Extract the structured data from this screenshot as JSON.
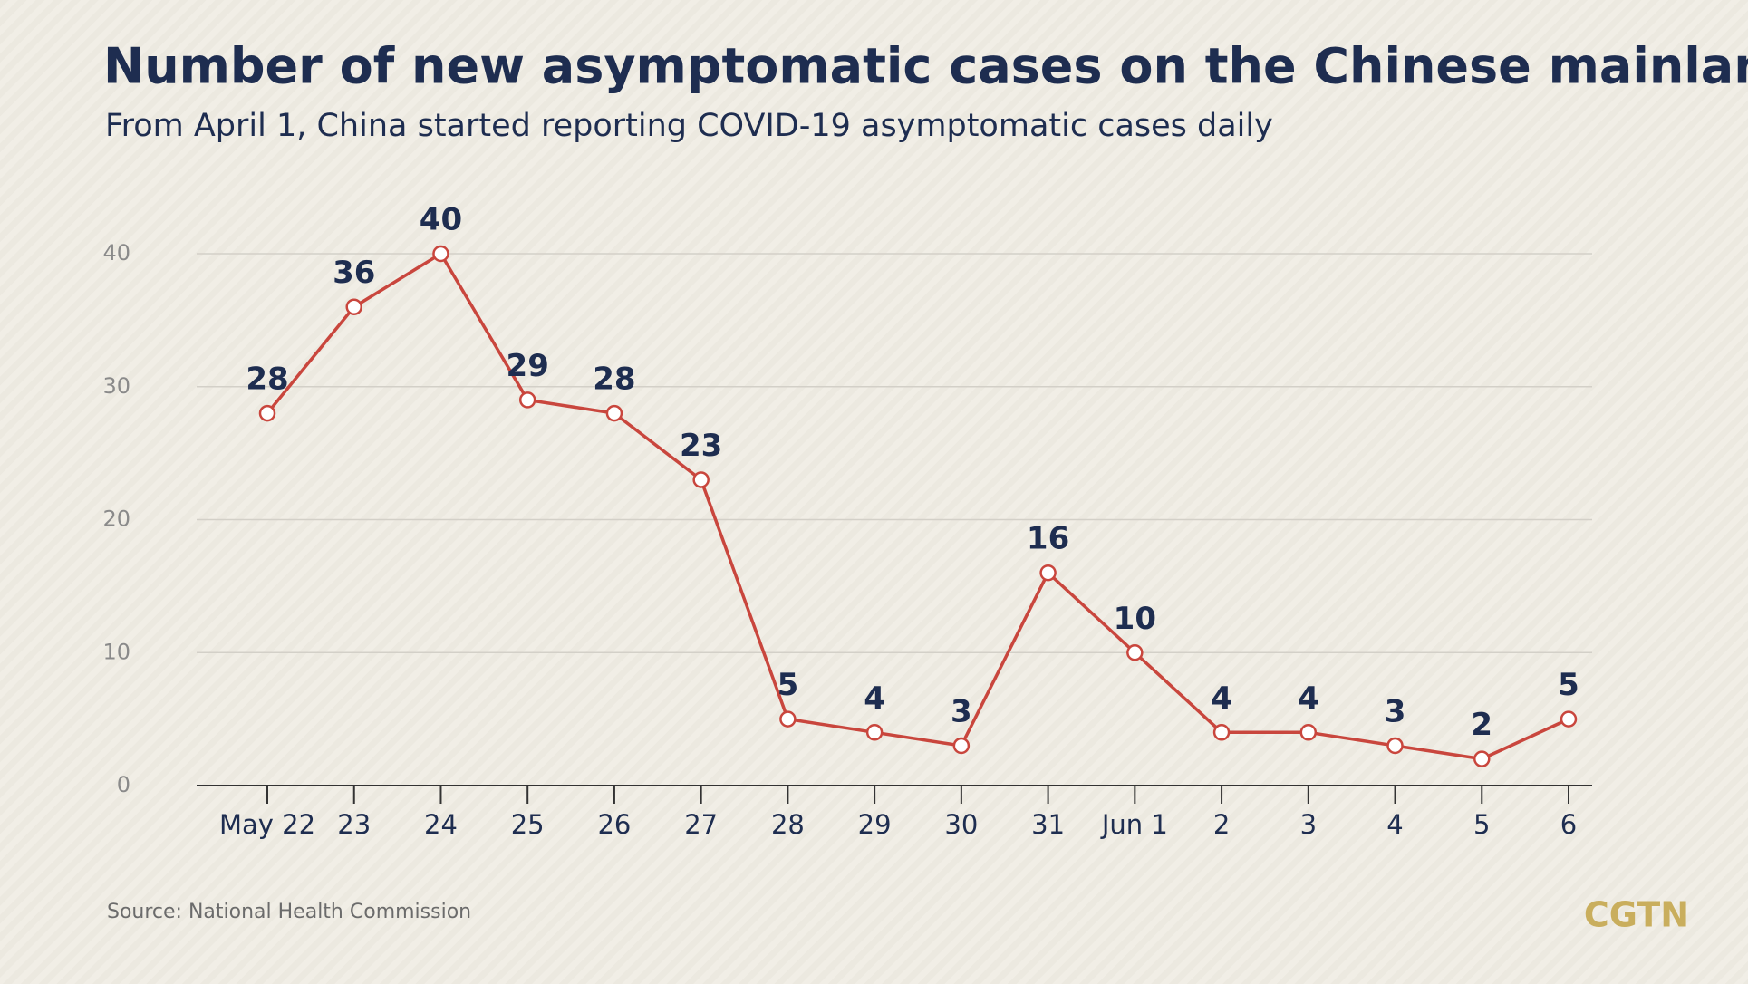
{
  "chart_data": {
    "type": "line",
    "title": "Number of new asymptomatic cases on the Chinese mainland",
    "subtitle": "From April 1, China started reporting COVID-19 asymptomatic cases daily",
    "categories": [
      "May 22",
      "23",
      "24",
      "25",
      "26",
      "27",
      "28",
      "29",
      "30",
      "31",
      "Jun 1",
      "2",
      "3",
      "4",
      "5",
      "6"
    ],
    "series": [
      {
        "name": "New asymptomatic cases",
        "color": "#c9463d",
        "values": [
          28,
          36,
          40,
          29,
          28,
          23,
          5,
          4,
          3,
          16,
          10,
          4,
          4,
          3,
          2,
          5
        ]
      }
    ],
    "ylim": [
      0,
      40
    ],
    "yticks": [
      0,
      10,
      20,
      30,
      40
    ],
    "grid": true,
    "source": "Source: National Health Commission",
    "logo": "CGTN"
  }
}
